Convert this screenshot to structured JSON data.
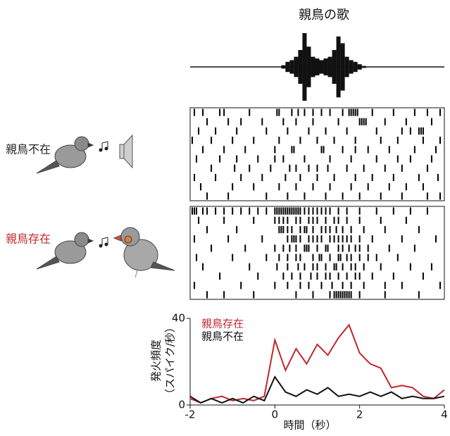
{
  "chart_data": [
    {
      "type": "waveform",
      "title": "親鳥の歌",
      "xlim": [
        -2,
        4
      ],
      "x": [
        0.2,
        0.3,
        0.4,
        0.5,
        0.6,
        0.7,
        0.8,
        0.9,
        1.0,
        1.1,
        1.2,
        1.3,
        1.4,
        1.5,
        1.6,
        1.7,
        1.8,
        1.9,
        2.0,
        2.1
      ],
      "values": [
        0.05,
        0.15,
        0.2,
        0.3,
        0.5,
        1.0,
        0.6,
        0.3,
        0.25,
        0.2,
        0.25,
        0.3,
        0.5,
        0.9,
        0.7,
        0.3,
        0.2,
        0.15,
        0.08,
        0.03
      ]
    },
    {
      "type": "raster",
      "label": "親鳥不在",
      "label_color": "#222222",
      "xlim": [
        -2,
        4
      ],
      "trials": [
        [
          -1.9,
          -1.7,
          -1.3,
          -1.2,
          -0.6,
          0.05,
          0.1,
          0.4,
          0.55,
          0.7,
          0.9,
          1.1,
          1.3,
          1.6,
          1.75,
          1.8,
          1.85,
          1.9,
          1.95,
          2.3,
          2.8,
          3.3,
          3.6,
          3.9
        ],
        [
          -1.6,
          -1.1,
          -0.8,
          -0.3,
          0.2,
          0.5,
          0.9,
          1.5,
          2.0,
          2.05,
          2.1,
          2.15,
          2.6,
          3.1,
          3.7
        ],
        [
          -1.8,
          -1.4,
          -0.9,
          -0.2,
          0.3,
          0.8,
          1.2,
          1.7,
          2.4,
          3.0,
          3.2,
          3.4,
          3.45,
          3.5
        ],
        [
          -1.95,
          -1.5,
          -1.0,
          -0.5,
          0.1,
          0.6,
          1.0,
          1.4,
          1.9,
          2.5,
          2.9,
          3.5,
          3.9
        ],
        [
          -1.7,
          -1.2,
          -0.7,
          0.0,
          0.4,
          0.45,
          1.1,
          1.15,
          1.6,
          1.9,
          2.2,
          2.7,
          3.3,
          3.8
        ],
        [
          -1.85,
          -1.3,
          -0.9,
          -0.4,
          0.0,
          0.2,
          0.7,
          1.3,
          1.8,
          2.4,
          2.9,
          3.2,
          3.7
        ],
        [
          -1.5,
          -0.95,
          -0.6,
          -0.1,
          0.35,
          0.5,
          0.8,
          1.0,
          1.25,
          1.7,
          2.1,
          2.6,
          3.0,
          3.6
        ],
        [
          -1.9,
          -1.4,
          -0.8,
          -0.3,
          0.25,
          0.6,
          1.0,
          1.4,
          1.9,
          2.3,
          2.8,
          3.4,
          3.85
        ],
        [
          -1.75,
          -1.0,
          -0.5,
          0.1,
          0.5,
          0.9,
          1.3,
          1.8,
          2.2,
          2.7,
          3.1,
          3.5
        ],
        [
          -1.6,
          -1.1,
          -0.2,
          0.3,
          0.7,
          1.2,
          1.6,
          2.0,
          2.5,
          3.0,
          3.6,
          3.9
        ]
      ]
    },
    {
      "type": "raster",
      "label": "親鳥存在",
      "label_color": "#c0282d",
      "xlim": [
        -2,
        4
      ],
      "trials": [
        [
          -1.95,
          -1.9,
          -1.85,
          -1.7,
          -1.6,
          -1.4,
          -1.2,
          -1.0,
          -0.8,
          -0.6,
          -0.4,
          -0.2,
          0.0,
          0.05,
          0.1,
          0.15,
          0.2,
          0.25,
          0.3,
          0.35,
          0.4,
          0.45,
          0.5,
          0.55,
          0.6,
          0.7,
          0.8,
          0.9,
          1.0,
          1.1,
          1.2,
          1.3,
          1.5,
          1.7,
          2.0,
          2.4,
          2.8,
          3.2,
          3.6
        ],
        [
          -1.8,
          -1.2,
          -0.5,
          0.0,
          0.1,
          0.2,
          0.3,
          0.5,
          0.6,
          0.8,
          0.9,
          1.0,
          1.2,
          1.4,
          1.5,
          1.7,
          2.0,
          2.5,
          3.1
        ],
        [
          -1.6,
          -0.9,
          0.1,
          0.15,
          0.2,
          0.3,
          0.4,
          0.6,
          0.7,
          0.75,
          0.9,
          1.1,
          1.2,
          1.3,
          1.45,
          1.6,
          1.8,
          2.1,
          2.6,
          3.4
        ],
        [
          -1.9,
          -1.1,
          -0.3,
          0.3,
          0.4,
          0.45,
          0.5,
          0.6,
          0.8,
          0.9,
          1.0,
          1.1,
          1.3,
          1.4,
          1.5,
          1.6,
          1.7,
          1.8,
          2.0,
          2.3,
          3.0,
          3.8
        ],
        [
          -1.5,
          -0.7,
          0.0,
          0.2,
          0.35,
          0.5,
          0.7,
          0.75,
          0.8,
          1.0,
          1.2,
          1.25,
          1.5,
          1.6,
          1.75,
          1.9,
          2.0,
          2.2,
          2.7,
          3.3
        ],
        [
          -1.85,
          -1.0,
          -0.2,
          0.1,
          0.3,
          0.5,
          0.6,
          0.9,
          1.05,
          1.1,
          1.3,
          1.5,
          1.55,
          1.7,
          1.8,
          2.0,
          2.2,
          2.4,
          2.9
        ],
        [
          -1.7,
          -0.6,
          0.05,
          0.3,
          0.55,
          0.7,
          0.9,
          1.0,
          1.2,
          1.4,
          1.45,
          1.6,
          1.8,
          1.9,
          2.1,
          2.5,
          3.2,
          3.7
        ],
        [
          -1.3,
          -0.4,
          0.2,
          0.4,
          0.6,
          0.85,
          1.0,
          1.2,
          1.3,
          1.5,
          1.7,
          1.9,
          2.0,
          2.3,
          2.8,
          3.5
        ],
        [
          -1.9,
          -0.8,
          0.0,
          0.3,
          0.6,
          0.8,
          1.1,
          1.35,
          1.6,
          1.8,
          2.1,
          2.6,
          3.0,
          3.9
        ],
        [
          -1.6,
          -1.2,
          -0.5,
          0.5,
          0.9,
          1.3,
          1.4,
          1.45,
          1.5,
          1.55,
          1.6,
          1.65,
          1.7,
          1.75,
          1.8,
          2.0,
          2.6,
          3.4
        ]
      ]
    },
    {
      "type": "line",
      "xlabel": "時間（秒）",
      "ylabel": [
        "発火頻度",
        "（スパイク/秒）"
      ],
      "xlim": [
        -2,
        4
      ],
      "ylim": [
        0,
        40
      ],
      "xticks": [
        -2,
        0,
        2,
        4
      ],
      "yticks": [
        0,
        40
      ],
      "legend": "upper left",
      "x": [
        -2,
        -1.75,
        -1.5,
        -1.25,
        -1,
        -0.75,
        -0.5,
        -0.25,
        0,
        0.25,
        0.5,
        0.75,
        1,
        1.25,
        1.5,
        1.75,
        2,
        2.25,
        2.5,
        2.75,
        3,
        3.25,
        3.5,
        3.75,
        4
      ],
      "series": [
        {
          "name": "親鳥存在",
          "color": "#c0282d",
          "values": [
            3,
            1,
            3,
            4,
            2,
            3,
            2,
            4,
            30,
            16,
            26,
            19,
            28,
            23,
            31,
            37,
            24,
            19,
            17,
            8,
            9,
            8,
            4,
            3,
            7
          ]
        },
        {
          "name": "親鳥不在",
          "color": "#111111",
          "values": [
            4,
            1,
            3,
            1,
            3,
            1,
            4,
            2,
            13,
            6,
            4,
            7,
            5,
            8,
            4,
            5,
            4,
            6,
            4,
            6,
            3,
            4,
            3,
            3,
            4
          ]
        }
      ]
    }
  ]
}
